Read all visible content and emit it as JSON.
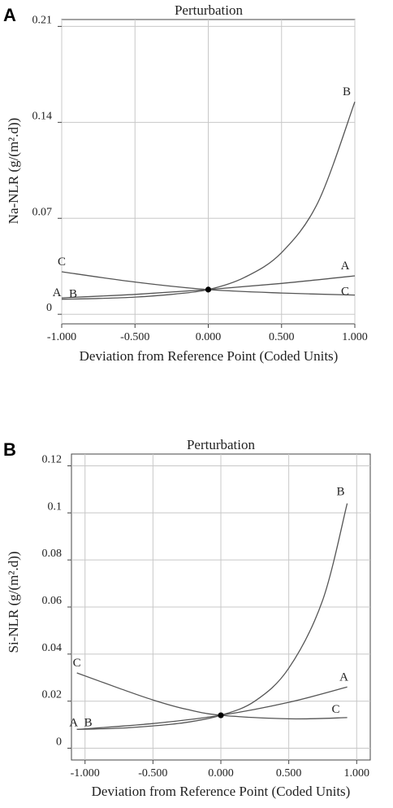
{
  "panels": [
    {
      "letter": "A",
      "chart_data": {
        "type": "line",
        "title": "Perturbation",
        "xlabel": "Deviation from Reference Point (Coded Units)",
        "ylabel": "Na-NLR (g/(m².d))",
        "xlim": [
          -1.0,
          1.0
        ],
        "ylim": [
          -0.007,
          0.215
        ],
        "x_ticks": [
          -1.0,
          -0.5,
          0.0,
          0.5,
          1.0
        ],
        "x_tick_labels": [
          "-1.000",
          "-0.500",
          "0.000",
          "0.500",
          "1.000"
        ],
        "y_ticks": [
          0,
          0.07,
          0.14,
          0.21
        ],
        "y_tick_labels": [
          "0",
          "0.07",
          "0.14",
          "0.21"
        ],
        "grid": true,
        "reference_point": {
          "x": 0.0,
          "y": 0.018
        },
        "series": [
          {
            "name": "A",
            "x": [
              -1.0,
              -0.5,
              0.0,
              0.5,
              1.0
            ],
            "values": [
              0.012,
              0.0145,
              0.018,
              0.0225,
              0.028
            ],
            "label_at": "both"
          },
          {
            "name": "B",
            "x": [
              -1.0,
              -0.75,
              -0.5,
              -0.25,
              0.0,
              0.25,
              0.5,
              0.75,
              1.0
            ],
            "values": [
              0.011,
              0.0115,
              0.0125,
              0.0145,
              0.018,
              0.027,
              0.045,
              0.082,
              0.155
            ],
            "label_at": "both"
          },
          {
            "name": "C",
            "x": [
              -1.0,
              -0.5,
              0.0,
              0.5,
              1.0
            ],
            "values": [
              0.031,
              0.0235,
              0.018,
              0.0155,
              0.014
            ],
            "label_at": "both"
          }
        ]
      }
    },
    {
      "letter": "B",
      "chart_data": {
        "type": "line",
        "title": "Perturbation",
        "xlabel": "Deviation from Reference Point (Coded Units)",
        "ylabel": "Si-NLR (g/(m².d))",
        "xlim": [
          -1.1,
          1.1
        ],
        "ylim": [
          -0.005,
          0.125
        ],
        "x_ticks": [
          -1.0,
          -0.5,
          0.0,
          0.5,
          1.0
        ],
        "x_tick_labels": [
          "-1.000",
          "-0.500",
          "0.000",
          "0.500",
          "1.000"
        ],
        "y_ticks": [
          0,
          0.02,
          0.04,
          0.06,
          0.08,
          0.1,
          0.12
        ],
        "y_tick_labels": [
          "0",
          "0.02",
          "0.04",
          "0.06",
          "0.08",
          "0.1",
          "0.12"
        ],
        "grid": true,
        "reference_point": {
          "x": 0.0,
          "y": 0.014
        },
        "series": [
          {
            "name": "A",
            "x": [
              -1.06,
              -0.5,
              0.0,
              0.5,
              0.93
            ],
            "values": [
              0.008,
              0.0105,
              0.014,
              0.0195,
              0.026
            ],
            "label_at": "both"
          },
          {
            "name": "B",
            "x": [
              -1.06,
              -0.75,
              -0.5,
              -0.25,
              0.0,
              0.25,
              0.5,
              0.75,
              0.93
            ],
            "values": [
              0.008,
              0.0085,
              0.0095,
              0.011,
              0.014,
              0.02,
              0.034,
              0.063,
              0.104
            ],
            "label_at": "both"
          },
          {
            "name": "C",
            "x": [
              -1.06,
              -0.75,
              -0.5,
              -0.25,
              0.0,
              0.5,
              0.93
            ],
            "values": [
              0.032,
              0.0255,
              0.0205,
              0.0165,
              0.014,
              0.0125,
              0.013
            ],
            "label_at": "both"
          }
        ]
      }
    }
  ]
}
